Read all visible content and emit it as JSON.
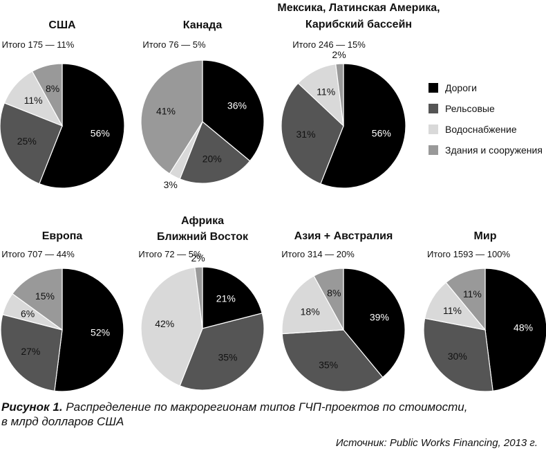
{
  "chart_data": {
    "type": "pie",
    "legend": {
      "position": "right",
      "entries": [
        {
          "name": "Дороги",
          "color": "#000000"
        },
        {
          "name": "Рельсовые",
          "color": "#555555"
        },
        {
          "name": "Водоснабжение",
          "color": "#d9d9d9"
        },
        {
          "name": "Здания и сооружения",
          "color": "#999999"
        }
      ]
    },
    "charts": [
      {
        "title": [
          "США"
        ],
        "total": "Итого 175 — 11%",
        "slices": [
          {
            "category": "Дороги",
            "value": 56
          },
          {
            "category": "Рельсовые",
            "value": 25
          },
          {
            "category": "Водоснабжение",
            "value": 11
          },
          {
            "category": "Здания и сооружения",
            "value": 8
          }
        ]
      },
      {
        "title": [
          "Канада"
        ],
        "total": "Итого 76 — 5%",
        "slices": [
          {
            "category": "Дороги",
            "value": 36
          },
          {
            "category": "Рельсовые",
            "value": 20
          },
          {
            "category": "Водоснабжение",
            "value": 3
          },
          {
            "category": "Здания и сооружения",
            "value": 41
          }
        ]
      },
      {
        "title": [
          "Мексика, Латинская Америка,",
          "Карибский бассейн"
        ],
        "total": "Итого 246 — 15%",
        "slices": [
          {
            "category": "Дороги",
            "value": 56
          },
          {
            "category": "Рельсовые",
            "value": 31
          },
          {
            "category": "Водоснабжение",
            "value": 11
          },
          {
            "category": "Здания и сооружения",
            "value": 2
          }
        ]
      },
      {
        "title": [
          "Европа"
        ],
        "total": "Итого 707 — 44%",
        "slices": [
          {
            "category": "Дороги",
            "value": 52
          },
          {
            "category": "Рельсовые",
            "value": 27
          },
          {
            "category": "Водоснабжение",
            "value": 6
          },
          {
            "category": "Здания и сооружения",
            "value": 15
          }
        ]
      },
      {
        "title": [
          "Африка",
          "Ближний Восток"
        ],
        "total": "Итого 72 — 5%",
        "slices": [
          {
            "category": "Дороги",
            "value": 21
          },
          {
            "category": "Рельсовые",
            "value": 35
          },
          {
            "category": "Водоснабжение",
            "value": 42
          },
          {
            "category": "Здания и сооружения",
            "value": 2
          }
        ]
      },
      {
        "title": [
          "Азия + Австралия"
        ],
        "total": "Итого 314 — 20%",
        "slices": [
          {
            "category": "Дороги",
            "value": 39
          },
          {
            "category": "Рельсовые",
            "value": 35
          },
          {
            "category": "Водоснабжение",
            "value": 18
          },
          {
            "category": "Здания и сооружения",
            "value": 8
          }
        ]
      },
      {
        "title": [
          "Мир"
        ],
        "total": "Итого 1593 — 100%",
        "slices": [
          {
            "category": "Дороги",
            "value": 48
          },
          {
            "category": "Рельсовые",
            "value": 30
          },
          {
            "category": "Водоснабжение",
            "value": 11
          },
          {
            "category": "Здания и сооружения",
            "value": 11
          }
        ]
      }
    ]
  },
  "caption": {
    "label": "Рисунок 1.",
    "line1": "Распределение по макрорегионам типов ГЧП-проектов по стоимости,",
    "line2": "в млрд долларов США"
  },
  "source": "Источник: Public Works Financing, 2013 г."
}
